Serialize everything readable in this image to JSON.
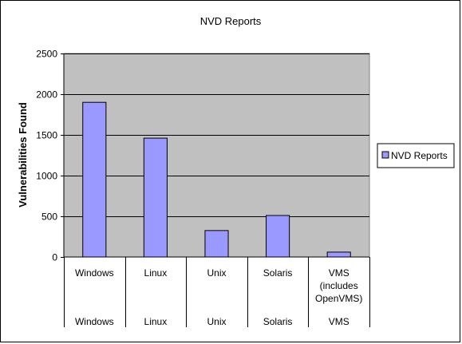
{
  "chart_data": {
    "type": "bar",
    "title": "NVD Reports",
    "ylabel": "Vulnerabilities Found",
    "xlabel": "",
    "ylim": [
      0,
      2500
    ],
    "yticks": [
      0,
      500,
      1000,
      1500,
      2000,
      2500
    ],
    "categories": [
      "Windows",
      "Linux",
      "Unix",
      "Solaris",
      "VMS"
    ],
    "category_labels_top": [
      [
        "Windows"
      ],
      [
        "Linux"
      ],
      [
        "Unix"
      ],
      [
        "Solaris"
      ],
      [
        "VMS",
        "(includes",
        "OpenVMS)"
      ]
    ],
    "category_labels_bottom": [
      "Windows",
      "Linux",
      "Unix",
      "Solaris",
      "VMS"
    ],
    "series": [
      {
        "name": "NVD Reports",
        "values": [
          1900,
          1460,
          325,
          510,
          60
        ]
      }
    ],
    "grid": true,
    "legend": "right",
    "colors": {
      "bar_fill": "#9999ff",
      "plot_bg": "#c0c0c0",
      "grid": "#000000",
      "frame": "#000000"
    }
  }
}
